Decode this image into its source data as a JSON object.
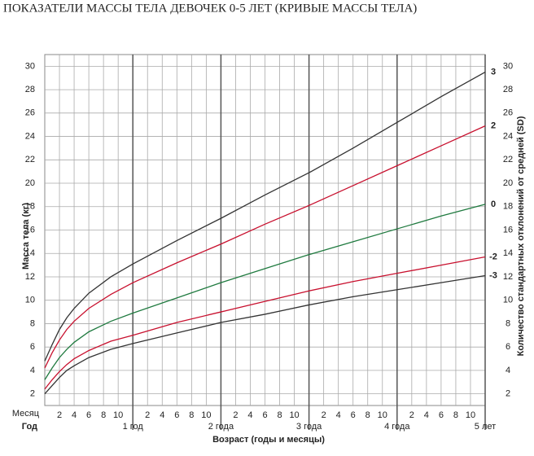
{
  "chart_data": {
    "type": "line",
    "title": "ПОКАЗАТЕЛИ МАССЫ ТЕЛА ДЕВОЧЕК 0-5 ЛЕТ (КРИВЫЕ МАССЫ ТЕЛА)",
    "ylabel": "Масса тела (кг)",
    "y2label": "Количество стандартных отклонений от средней (SD)",
    "xlabel": "Возраст (годы и месяцы)",
    "month_row_label": "Месяц",
    "year_row_label": "Год",
    "x": [
      0,
      1,
      2,
      3,
      4,
      6,
      9,
      12,
      18,
      24,
      30,
      36,
      42,
      48,
      54,
      60
    ],
    "xlim": [
      0,
      60
    ],
    "month_ticks": [
      {
        "value": 2,
        "label": "2"
      },
      {
        "value": 4,
        "label": "4"
      },
      {
        "value": 6,
        "label": "6"
      },
      {
        "value": 8,
        "label": "8"
      },
      {
        "value": 10,
        "label": "10"
      },
      {
        "value": 14,
        "label": "2"
      },
      {
        "value": 16,
        "label": "4"
      },
      {
        "value": 18,
        "label": "6"
      },
      {
        "value": 20,
        "label": "8"
      },
      {
        "value": 22,
        "label": "10"
      },
      {
        "value": 26,
        "label": "2"
      },
      {
        "value": 28,
        "label": "4"
      },
      {
        "value": 30,
        "label": "6"
      },
      {
        "value": 32,
        "label": "8"
      },
      {
        "value": 34,
        "label": "10"
      },
      {
        "value": 38,
        "label": "2"
      },
      {
        "value": 40,
        "label": "4"
      },
      {
        "value": 42,
        "label": "6"
      },
      {
        "value": 44,
        "label": "8"
      },
      {
        "value": 46,
        "label": "10"
      },
      {
        "value": 50,
        "label": "2"
      },
      {
        "value": 52,
        "label": "4"
      },
      {
        "value": 54,
        "label": "6"
      },
      {
        "value": 56,
        "label": "8"
      },
      {
        "value": 58,
        "label": "10"
      }
    ],
    "year_ticks": [
      {
        "value": 12,
        "label": "1 год"
      },
      {
        "value": 24,
        "label": "2 года"
      },
      {
        "value": 36,
        "label": "3 года"
      },
      {
        "value": 48,
        "label": "4 года"
      },
      {
        "value": 60,
        "label": "5 лет"
      }
    ],
    "ylim": [
      1,
      31
    ],
    "yticks": [
      2,
      4,
      6,
      8,
      10,
      12,
      14,
      16,
      18,
      20,
      22,
      24,
      26,
      28,
      30
    ],
    "y2lim": [
      1,
      31
    ],
    "y2ticks": [
      2,
      4,
      6,
      8,
      10,
      12,
      14,
      16,
      18,
      20,
      22,
      24,
      26,
      28,
      30
    ],
    "grid": true,
    "series": [
      {
        "name": "3",
        "color": "#333333",
        "values": [
          4.8,
          6.2,
          7.5,
          8.5,
          9.3,
          10.6,
          12.0,
          13.1,
          15.1,
          17.0,
          19.0,
          20.9,
          23.0,
          25.2,
          27.4,
          29.5
        ]
      },
      {
        "name": "2",
        "color": "#c8102e",
        "values": [
          4.2,
          5.5,
          6.6,
          7.5,
          8.2,
          9.3,
          10.5,
          11.5,
          13.2,
          14.8,
          16.5,
          18.1,
          19.8,
          21.5,
          23.2,
          24.9
        ]
      },
      {
        "name": "0",
        "color": "#1f7a3f",
        "values": [
          3.2,
          4.2,
          5.1,
          5.8,
          6.4,
          7.3,
          8.2,
          8.9,
          10.2,
          11.5,
          12.7,
          13.9,
          15.0,
          16.1,
          17.2,
          18.2
        ]
      },
      {
        "name": "-2",
        "color": "#c8102e",
        "values": [
          2.4,
          3.2,
          3.9,
          4.5,
          5.0,
          5.7,
          6.5,
          7.0,
          8.1,
          9.0,
          9.9,
          10.8,
          11.6,
          12.3,
          13.0,
          13.7
        ]
      },
      {
        "name": "-3",
        "color": "#333333",
        "values": [
          2.0,
          2.7,
          3.4,
          4.0,
          4.4,
          5.1,
          5.8,
          6.3,
          7.2,
          8.1,
          8.8,
          9.6,
          10.3,
          10.9,
          11.5,
          12.1
        ]
      }
    ]
  }
}
